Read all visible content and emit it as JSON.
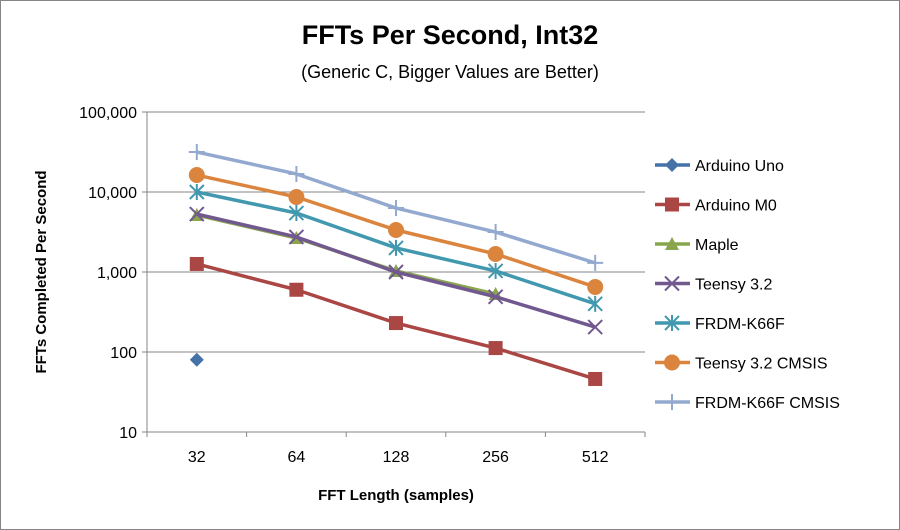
{
  "chart_data": {
    "type": "line",
    "title": "FFTs Per Second, Int32",
    "subtitle": "(Generic C, Bigger Values are Better)",
    "xlabel": "FFT Length (samples)",
    "ylabel": "FFTs Completed Per Second",
    "y_scale": "log",
    "ylim": [
      10,
      100000
    ],
    "y_ticks": [
      "10",
      "100",
      "1,000",
      "10,000",
      "100,000"
    ],
    "categories": [
      "32",
      "64",
      "128",
      "256",
      "512"
    ],
    "grid": "horizontal major",
    "legend_position": "right",
    "series": [
      {
        "name": "Arduino Uno",
        "color": "#4572A7",
        "marker": "diamond",
        "values": [
          80,
          null,
          null,
          null,
          null
        ]
      },
      {
        "name": "Arduino M0",
        "color": "#AA4643",
        "marker": "square",
        "values": [
          1260,
          600,
          230,
          112,
          46
        ]
      },
      {
        "name": "Maple",
        "color": "#89A54E",
        "marker": "triangle",
        "values": [
          5150,
          2660,
          1030,
          530,
          null
        ]
      },
      {
        "name": "Teensy 3.2",
        "color": "#71588F",
        "marker": "x",
        "values": [
          5300,
          2740,
          1000,
          490,
          205
        ]
      },
      {
        "name": "FRDM-K66F",
        "color": "#4198AF",
        "marker": "star",
        "values": [
          10000,
          5460,
          2000,
          1030,
          400
        ]
      },
      {
        "name": "Teensy 3.2 CMSIS",
        "color": "#DB843D",
        "marker": "circle",
        "values": [
          16300,
          8660,
          3350,
          1680,
          650
        ]
      },
      {
        "name": "FRDM-K66F CMSIS",
        "color": "#93A9CF",
        "marker": "plus",
        "values": [
          31600,
          16800,
          6300,
          3160,
          1300
        ]
      }
    ]
  }
}
